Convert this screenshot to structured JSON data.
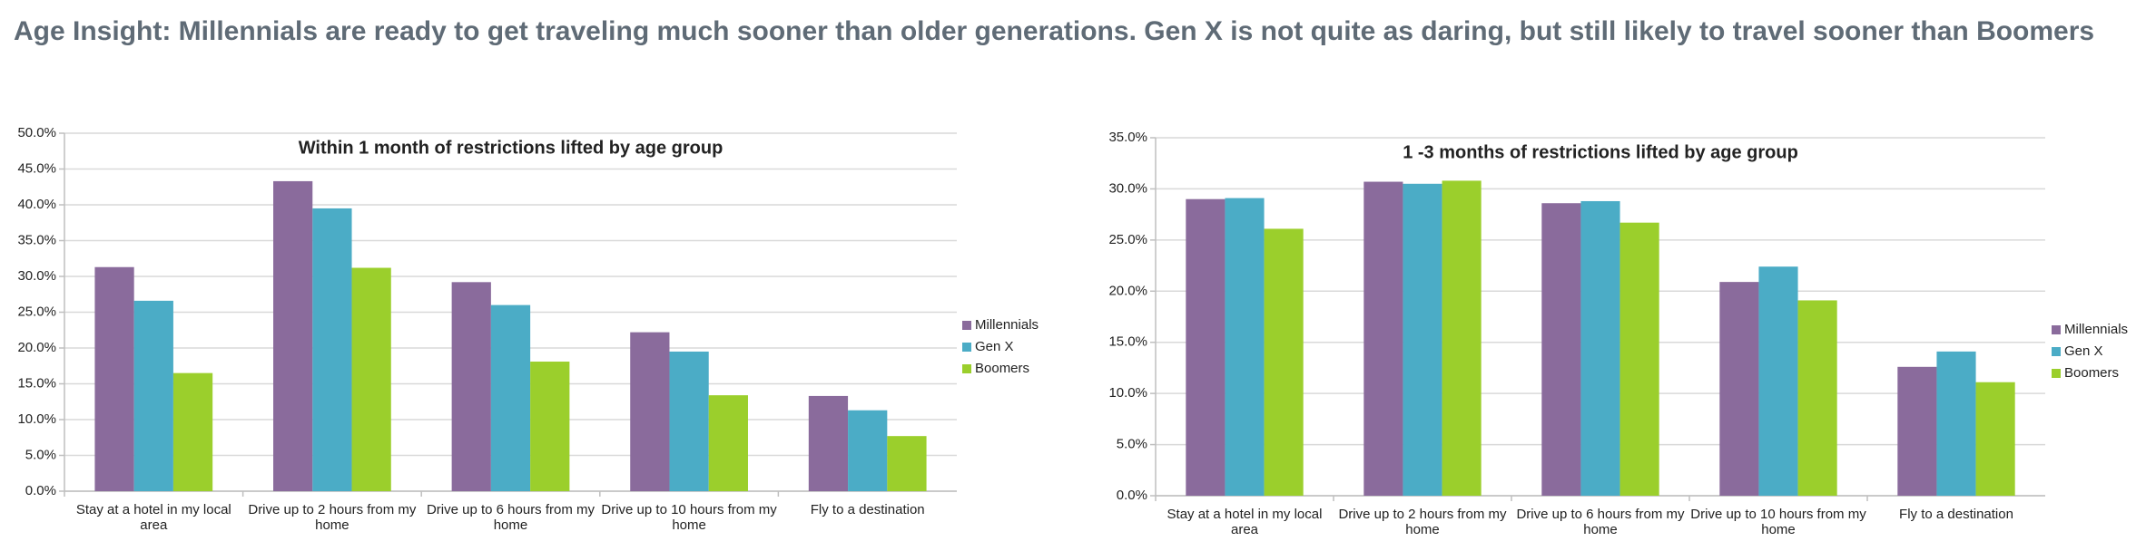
{
  "title": "Age Insight: Millennials are ready to get traveling much sooner than older generations. Gen X is not quite as daring, but still likely to travel sooner than Boomers",
  "chart_data": [
    {
      "type": "bar",
      "title": "Within 1 month of restrictions lifted by age group",
      "categories": [
        "Stay at a hotel in my local area",
        "Drive up to 2 hours from my home",
        "Drive up to 6 hours from my home",
        "Drive up to 10 hours from my home",
        "Fly to a destination"
      ],
      "series": [
        {
          "name": "Millennials",
          "color": "#8a6b9c",
          "values": [
            31.3,
            43.3,
            29.2,
            22.2,
            13.3
          ]
        },
        {
          "name": "Gen X",
          "color": "#4bacc6",
          "values": [
            26.6,
            39.5,
            26.0,
            19.5,
            11.3
          ]
        },
        {
          "name": "Boomers",
          "color": "#9bcf2c",
          "values": [
            16.5,
            31.2,
            18.1,
            13.4,
            7.7
          ]
        }
      ],
      "ylim": [
        0,
        50
      ],
      "yticks": [
        {
          "value": 0,
          "label": "0.0%"
        },
        {
          "value": 5,
          "label": "5.0%"
        },
        {
          "value": 10,
          "label": "10.0%"
        },
        {
          "value": 15,
          "label": "15.0%"
        },
        {
          "value": 20,
          "label": "20.0%"
        },
        {
          "value": 25,
          "label": "25.0%"
        },
        {
          "value": 30,
          "label": "30.0%"
        },
        {
          "value": 35,
          "label": "35.0%"
        },
        {
          "value": 40,
          "label": "40.0%"
        },
        {
          "value": 45,
          "label": "45.0%"
        },
        {
          "value": 50,
          "label": "50.0%"
        }
      ],
      "grid": true,
      "legend": "right"
    },
    {
      "type": "bar",
      "title": "1 -3 months of restrictions lifted by age group",
      "categories": [
        "Stay at a hotel in my local area",
        "Drive up to 2 hours from my home",
        "Drive up to 6 hours from my home",
        "Drive up to 10 hours from my home",
        "Fly to a destination"
      ],
      "series": [
        {
          "name": "Millennials",
          "color": "#8a6b9c",
          "values": [
            29.0,
            30.7,
            28.6,
            20.9,
            12.6
          ]
        },
        {
          "name": "Gen X",
          "color": "#4bacc6",
          "values": [
            29.1,
            30.5,
            28.8,
            22.4,
            14.1
          ]
        },
        {
          "name": "Boomers",
          "color": "#9bcf2c",
          "values": [
            26.1,
            30.8,
            26.7,
            19.1,
            11.1
          ]
        }
      ],
      "ylim": [
        0,
        35
      ],
      "yticks": [
        {
          "value": 0,
          "label": "0.0%"
        },
        {
          "value": 5,
          "label": "5.0%"
        },
        {
          "value": 10,
          "label": "10.0%"
        },
        {
          "value": 15,
          "label": "15.0%"
        },
        {
          "value": 20,
          "label": "20.0%"
        },
        {
          "value": 25,
          "label": "25.0%"
        },
        {
          "value": 30,
          "label": "30.0%"
        },
        {
          "value": 35,
          "label": "35.0%"
        }
      ],
      "grid": true,
      "legend": "right"
    }
  ]
}
